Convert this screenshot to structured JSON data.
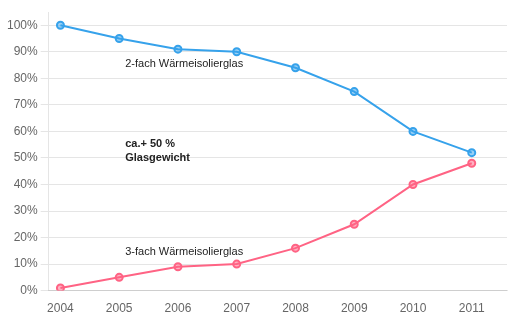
{
  "chart_data": {
    "type": "line",
    "x": [
      2004,
      2005,
      2006,
      2007,
      2008,
      2009,
      2010,
      2011
    ],
    "series": [
      {
        "values": [
          100,
          95,
          91,
          90,
          84,
          75,
          60,
          52
        ]
      },
      {
        "values": [
          1,
          5,
          9,
          10,
          16,
          25,
          40,
          48
        ]
      }
    ],
    "marker": "circle",
    "xlim": [
      2003.8,
      2011.6
    ],
    "xticks": [
      2004,
      2005,
      2006,
      2007,
      2008,
      2009,
      2010,
      2011
    ],
    "ylim": [
      0,
      105
    ],
    "yticks": [
      {
        "value": 0,
        "label": "0%"
      },
      {
        "value": 10,
        "label": "10%"
      },
      {
        "value": 20,
        "label": "20%"
      },
      {
        "value": 30,
        "label": "30%"
      },
      {
        "value": 40,
        "label": "40%"
      },
      {
        "value": 50,
        "label": "50%"
      },
      {
        "value": 60,
        "label": "60%"
      },
      {
        "value": 70,
        "label": "70%"
      },
      {
        "value": 80,
        "label": "80%"
      },
      {
        "value": 90,
        "label": "90%"
      },
      {
        "value": 100,
        "label": "100%"
      }
    ],
    "grid": true,
    "annotations": [
      "2-fach Wärmeisolierglas",
      "3-fach Wärmeisolierglas",
      "ca.+ 50 %",
      "Glasgewicht"
    ]
  }
}
